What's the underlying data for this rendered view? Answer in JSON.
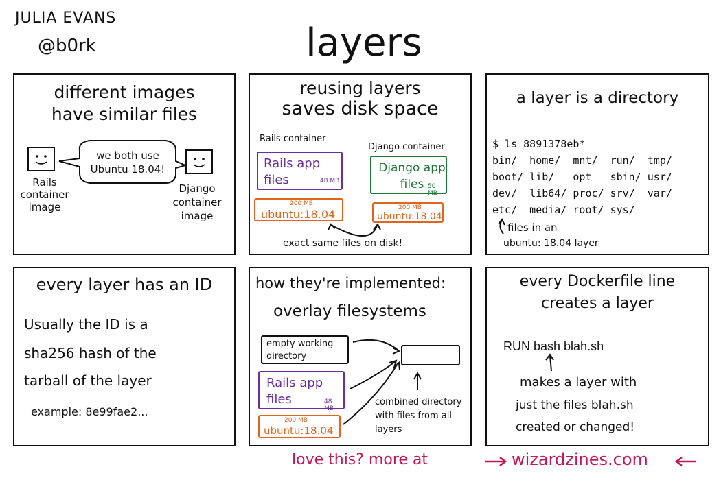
{
  "header": {
    "author_name": "JULIA EVANS",
    "author_handle": "@b0rk",
    "title": "layers"
  },
  "panel1": {
    "title_line1": "different images",
    "title_line2": "have similar files",
    "speech": "we both use Ubuntu 18.04!",
    "left_label": "Rails container image",
    "right_label": "Django container image"
  },
  "panel2": {
    "title_line1": "reusing layers",
    "title_line2": "saves disk space",
    "rails_container_label": "Rails container",
    "django_container_label": "Django container",
    "rails_app_files": "Rails app files",
    "rails_size": "48 MB",
    "django_app_files": "Django app files",
    "django_size": "50 MB",
    "ubuntu_size": "200 MB",
    "ubuntu_label": "ubuntu:18.04",
    "caption": "exact same files on disk!"
  },
  "panel3": {
    "title": "a layer is a directory",
    "command": "$ ls 8891378eb*",
    "ls_rows": [
      "bin/  home/  mnt/  run/  tmp/",
      "boot/ lib/   opt   sbin/ usr/",
      "dev/  lib64/ proc/ srv/  var/",
      "etc/  media/ root/ sys/"
    ],
    "note_line1": "files in an",
    "note_line2": "ubuntu: 18.04 layer"
  },
  "panel4": {
    "title": "every layer has an ID",
    "body_line1": "Usually the ID is a",
    "body_line2": "sha256 hash of the",
    "body_line3": "tarball of the layer",
    "example": "example: 8e99fae2..."
  },
  "panel5": {
    "title_line1": "how they're implemented:",
    "title_line2": "overlay filesystems",
    "empty_dir": "empty working directory",
    "rails_app_files": "Rails app files",
    "rails_size": "48 MB",
    "ubuntu_size": "200 MB",
    "ubuntu_label": "ubuntu:18.04",
    "combined_note": "combined directory with files from all layers"
  },
  "panel6": {
    "title_line1": "every Dockerfile line",
    "title_line2": "creates a layer",
    "command": "RUN bash blah.sh",
    "note_line1": "makes a layer with",
    "note_line2": "just the files blah.sh",
    "note_line3": "created or changed!"
  },
  "footer": {
    "text": "love this? more at",
    "site": "wizardzines.com",
    "accent": "#c2185b"
  }
}
